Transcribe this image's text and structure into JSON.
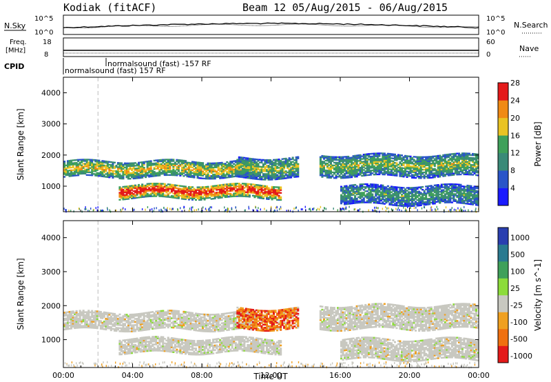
{
  "header": {
    "station": "Kodiak (fitACF)",
    "beam_date": "Beam 12 05/Aug/2015 - 06/Aug/2015"
  },
  "strip_labels": {
    "nsky": "N.Sky",
    "freq_line1": "Freq.",
    "freq_line2": "[MHz]",
    "cpid": "CPID",
    "nsearch": "N.Search",
    "nave": "Nave",
    "nsky_ticks": [
      "10^5",
      "10^0"
    ],
    "nsearch_ticks": [
      "10^5",
      "10^0"
    ],
    "freq_ticks": [
      "18",
      "8"
    ],
    "nave_ticks": [
      "60",
      "0"
    ],
    "cpid_1": "normalsound (fast) -157 RF",
    "cpid_2": "normalsound (fast) 157 RF"
  },
  "chart_data": [
    {
      "type": "heatmap",
      "name": "power",
      "ylabel": "Slant Range [km]",
      "y_ticks": [
        1000,
        2000,
        3000,
        4000
      ],
      "ylim": [
        180,
        4500
      ],
      "x_ticks": [
        "00:00",
        "04:00",
        "08:00",
        "12:00",
        "16:00",
        "20:00",
        "00:00"
      ],
      "xlim_hours": [
        0,
        24
      ],
      "colorbar": {
        "label": "Power [dB]",
        "ticks": [
          "4",
          "8",
          "12",
          "16",
          "20",
          "24",
          "28"
        ],
        "colors": [
          "#1a1aff",
          "#2a55c8",
          "#3a8a78",
          "#3fa05a",
          "#e9c323",
          "#f08a14",
          "#e41a1a"
        ]
      },
      "bands": [
        {
          "t0": 0.0,
          "t1": 11.0,
          "r0": 1280,
          "r1": 1800,
          "level": 0.55
        },
        {
          "t0": 3.2,
          "t1": 12.5,
          "r0": 600,
          "r1": 1050,
          "level": 0.8
        },
        {
          "t0": 10.0,
          "t1": 13.5,
          "r0": 1250,
          "r1": 1900,
          "level": 0.45
        },
        {
          "t0": 14.8,
          "t1": 24.0,
          "r0": 1300,
          "r1": 2000,
          "level": 0.45
        },
        {
          "t0": 16.0,
          "t1": 24.0,
          "r0": 400,
          "r1": 1000,
          "level": 0.35
        }
      ]
    },
    {
      "type": "heatmap",
      "name": "velocity",
      "ylabel": "Slant Range [km]",
      "xlabel": "Time UT",
      "y_ticks": [
        1000,
        2000,
        3000,
        4000
      ],
      "ylim": [
        180,
        4500
      ],
      "x_ticks": [
        "00:00",
        "04:00",
        "08:00",
        "12:00",
        "16:00",
        "20:00",
        "00:00"
      ],
      "xlim_hours": [
        0,
        24
      ],
      "colorbar": {
        "label": "Velocity [m s^-1]",
        "ticks": [
          "1000",
          "500",
          "100",
          "25",
          "-25",
          "-100",
          "-500",
          "-1000"
        ],
        "colors": [
          "#2a3fb0",
          "#2a7a90",
          "#3fa05a",
          "#8cdc3a",
          "#c8c8c0",
          "#f0a020",
          "#f07010",
          "#e41a1a"
        ]
      },
      "bands": [
        {
          "t0": 0.0,
          "t1": 11.0,
          "r0": 1280,
          "r1": 1800,
          "level": 0.5
        },
        {
          "t0": 3.2,
          "t1": 12.5,
          "r0": 600,
          "r1": 1050,
          "level": 0.5
        },
        {
          "t0": 10.0,
          "t1": 13.5,
          "r0": 1300,
          "r1": 1900,
          "level": 0.85
        },
        {
          "t0": 14.8,
          "t1": 24.0,
          "r0": 1300,
          "r1": 2000,
          "level": 0.5
        },
        {
          "t0": 16.0,
          "t1": 24.0,
          "r0": 400,
          "r1": 1000,
          "level": 0.5
        }
      ]
    }
  ]
}
